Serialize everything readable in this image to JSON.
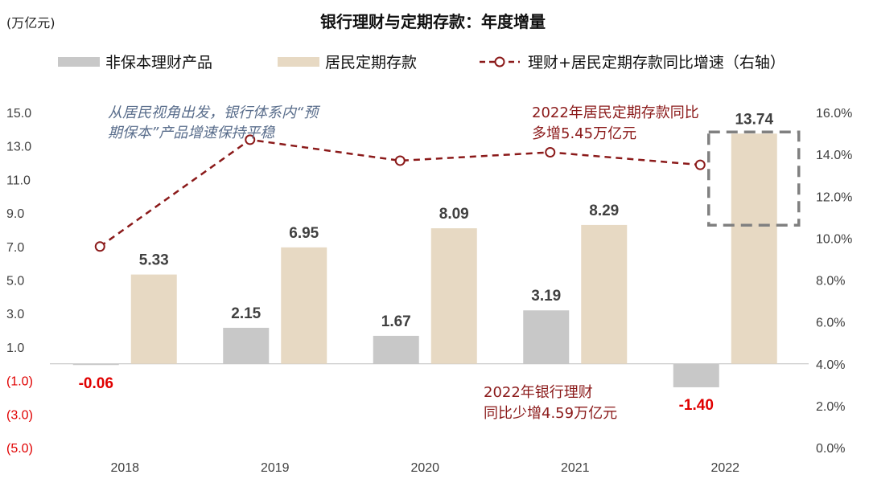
{
  "unit_label": "(万亿元)",
  "chart_data": {
    "type": "bar",
    "title": "银行理财与定期存款：年度增量",
    "categories": [
      "2018",
      "2019",
      "2020",
      "2021",
      "2022"
    ],
    "series": [
      {
        "name": "非保本理财产品",
        "type": "bar",
        "axis": "left",
        "color": "#c8c8c8",
        "values": [
          -0.06,
          2.15,
          1.67,
          3.19,
          -1.4
        ],
        "labels": [
          "-0.06",
          "2.15",
          "1.67",
          "3.19",
          "-1.40"
        ]
      },
      {
        "name": "居民定期存款",
        "type": "bar",
        "axis": "left",
        "color": "#e7d9c3",
        "values": [
          5.33,
          6.95,
          8.09,
          8.29,
          13.74
        ],
        "labels": [
          "5.33",
          "6.95",
          "8.09",
          "8.29",
          "13.74"
        ]
      },
      {
        "name": "理财+居民定期存款同比增速（右轴）",
        "type": "line",
        "axis": "right",
        "color": "#8b1a1a",
        "values": [
          9.6,
          14.7,
          13.7,
          14.1,
          13.5
        ]
      }
    ],
    "y_left": {
      "range": [
        -5,
        15
      ],
      "ticks": [
        "15.0",
        "13.0",
        "11.0",
        "9.0",
        "7.0",
        "5.0",
        "3.0",
        "1.0",
        "(1.0)",
        "(3.0)",
        "(5.0)"
      ]
    },
    "y_right": {
      "range": [
        0,
        16
      ],
      "ticks": [
        "16.0%",
        "14.0%",
        "12.0%",
        "10.0%",
        "8.0%",
        "6.0%",
        "4.0%",
        "2.0%",
        "0.0%"
      ]
    },
    "legend_position": "top",
    "grid": false,
    "annotations": {
      "perspective": [
        "从居民视角出发，银行体系内“预",
        "期保本”产品增速保持平稳"
      ],
      "deposit_2022": [
        "2022年居民定期存款同比",
        "多增5.45万亿元"
      ],
      "wealth_2022": [
        "2022年银行理财",
        "同比少增4.59万亿元"
      ]
    }
  }
}
